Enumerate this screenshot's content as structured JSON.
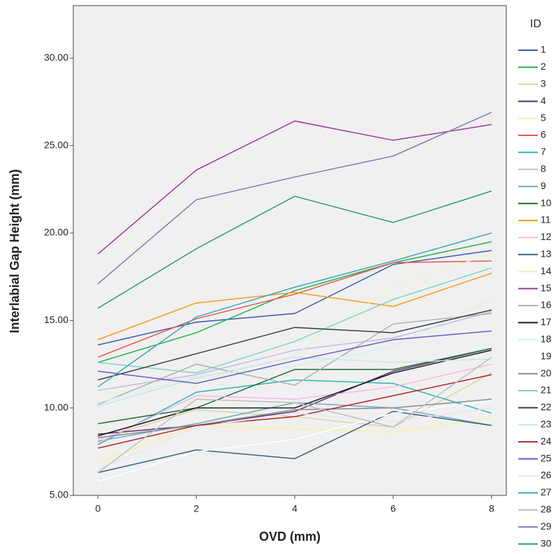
{
  "chart_data": {
    "type": "line",
    "x_label": "OVD (mm)",
    "y_label": "Interlabial Gap Height (mm)",
    "legend_title": "ID",
    "x": [
      0,
      2,
      4,
      6,
      8
    ],
    "xlim": [
      -0.5,
      8.3
    ],
    "xticks": [
      0,
      2,
      4,
      6,
      8
    ],
    "ylim": [
      5,
      33
    ],
    "yticks": [
      {
        "value": 5,
        "label": "5.00"
      },
      {
        "value": 10,
        "label": "10.00"
      },
      {
        "value": 15,
        "label": "15.00"
      },
      {
        "value": 20,
        "label": "20.00"
      },
      {
        "value": 25,
        "label": "25.00"
      },
      {
        "value": 30,
        "label": "30.00"
      }
    ],
    "legend": "right",
    "series": [
      {
        "name": "1",
        "color": "#3e58ac",
        "values": [
          13.6,
          14.9,
          15.4,
          18.2,
          19.0
        ]
      },
      {
        "name": "2",
        "color": "#21b14b",
        "values": [
          12.6,
          14.3,
          16.7,
          18.3,
          19.5
        ]
      },
      {
        "name": "3",
        "color": "#d8d3a5",
        "values": [
          8.2,
          9.9,
          9.5,
          8.9,
          12.0
        ]
      },
      {
        "name": "4",
        "color": "#5b2c6f",
        "values": [
          8.5,
          9.0,
          9.8,
          12.1,
          13.4
        ]
      },
      {
        "name": "5",
        "color": "#f8f39a",
        "values": [
          6.9,
          9.0,
          8.8,
          8.6,
          9.4
        ]
      },
      {
        "name": "6",
        "color": "#e8554e",
        "values": [
          12.9,
          15.1,
          16.5,
          18.3,
          18.4
        ]
      },
      {
        "name": "7",
        "color": "#2bb5b1",
        "values": [
          7.9,
          10.9,
          11.6,
          11.4,
          9.7
        ]
      },
      {
        "name": "8",
        "color": "#c8b8e0",
        "values": [
          11.0,
          11.9,
          13.3,
          14.0,
          15.5
        ]
      },
      {
        "name": "9",
        "color": "#6fa8c8",
        "values": [
          8.1,
          9.1,
          10.3,
          10.0,
          9.0
        ]
      },
      {
        "name": "10",
        "color": "#1d6b2f",
        "values": [
          9.1,
          10.0,
          12.2,
          12.2,
          13.4
        ]
      },
      {
        "name": "11",
        "color": "#f39c1e",
        "values": [
          13.9,
          16.0,
          16.6,
          15.8,
          17.7
        ]
      },
      {
        "name": "12",
        "color": "#f3b9e0",
        "values": [
          8.0,
          10.7,
          10.5,
          11.2,
          12.5
        ]
      },
      {
        "name": "13",
        "color": "#3b5f7a",
        "values": [
          6.3,
          7.6,
          7.1,
          9.8,
          9.0
        ]
      },
      {
        "name": "14",
        "color": "#e6f5c8",
        "values": [
          10.8,
          11.5,
          13.0,
          17.0,
          18.8
        ]
      },
      {
        "name": "15",
        "color": "#9b3a9b",
        "values": [
          18.8,
          23.6,
          26.4,
          25.3,
          26.2
        ]
      },
      {
        "name": "16",
        "color": "#b0b0b0",
        "values": [
          10.2,
          12.5,
          11.3,
          14.8,
          15.4
        ]
      },
      {
        "name": "17",
        "color": "#1a1a1a",
        "values": [
          8.4,
          10.0,
          10.0,
          12.0,
          13.3
        ]
      },
      {
        "name": "18",
        "color": "#d5f0f0",
        "values": [
          10.3,
          11.8,
          12.4,
          13.5,
          16.2
        ]
      },
      {
        "name": "19",
        "color": "#ffffff",
        "values": [
          5.8,
          7.5,
          8.2,
          9.7,
          10.4
        ]
      },
      {
        "name": "20",
        "color": "#8a8a8a",
        "values": [
          8.3,
          9.0,
          9.9,
          10.0,
          10.5
        ]
      },
      {
        "name": "21",
        "color": "#7fd4c1",
        "values": [
          12.6,
          12.0,
          13.8,
          16.2,
          18.0
        ]
      },
      {
        "name": "22",
        "color": "#3f3f3f",
        "values": [
          11.6,
          13.1,
          14.6,
          14.3,
          15.6
        ]
      },
      {
        "name": "23",
        "color": "#c4e8ea",
        "values": [
          10.1,
          11.7,
          12.9,
          12.6,
          12.8
        ]
      },
      {
        "name": "24",
        "color": "#b22222",
        "values": [
          7.7,
          9.0,
          9.5,
          10.7,
          11.9
        ]
      },
      {
        "name": "25",
        "color": "#6a5acd",
        "values": [
          12.1,
          11.4,
          12.7,
          13.9,
          14.4
        ]
      },
      {
        "name": "26",
        "color": "#e8e4f4",
        "values": [
          6.5,
          8.9,
          9.7,
          9.2,
          10.0
        ]
      },
      {
        "name": "27",
        "color": "#3aa6b9",
        "values": [
          11.2,
          15.2,
          16.9,
          18.4,
          20.0
        ]
      },
      {
        "name": "28",
        "color": "#bdbdbd",
        "values": [
          6.3,
          10.5,
          10.3,
          8.9,
          12.9
        ]
      },
      {
        "name": "29",
        "color": "#8878b0",
        "values": [
          17.1,
          21.9,
          23.2,
          24.4,
          26.9
        ]
      },
      {
        "name": "30",
        "color": "#2e9b6e",
        "values": [
          15.7,
          19.1,
          22.1,
          20.6,
          22.4
        ]
      }
    ]
  }
}
